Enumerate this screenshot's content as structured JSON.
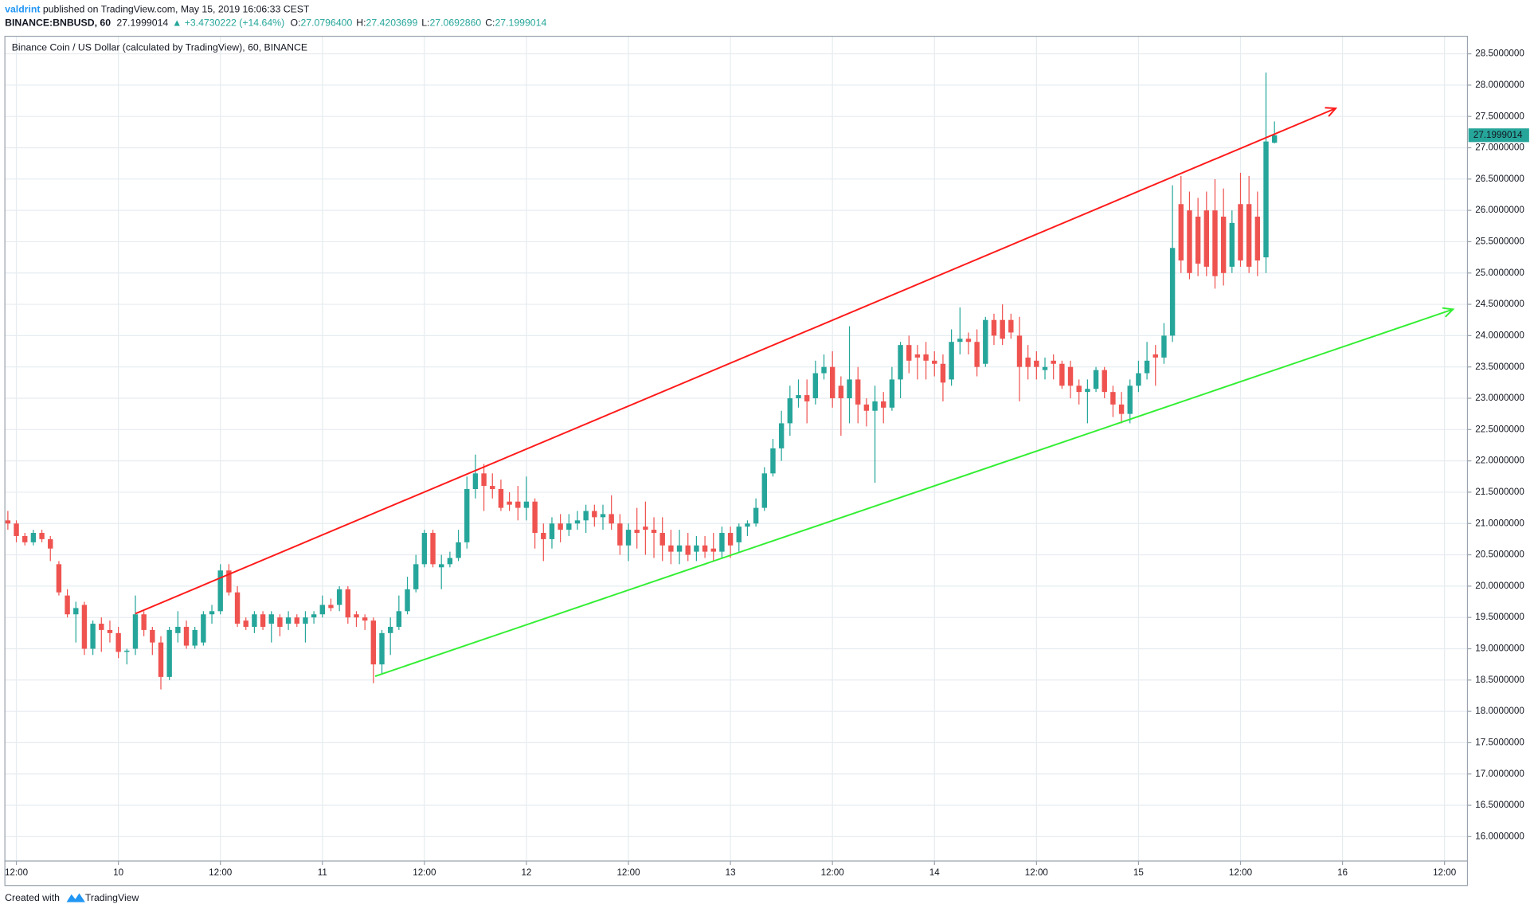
{
  "header": {
    "author": "valdrint",
    "published": " published on TradingView.com, May 15, 2019 16:06:33 CEST",
    "symbol": "BINANCE:BNBUSD, 60",
    "last": "27.1999014",
    "change": "▲ +3.4730222 (+14.64%)",
    "ohlc": [
      {
        "label": "O:",
        "value": "27.0796400"
      },
      {
        "label": "H:",
        "value": "27.4203699"
      },
      {
        "label": "L:",
        "value": "27.0692860"
      },
      {
        "label": "C:",
        "value": "27.1999014"
      }
    ]
  },
  "footer": {
    "created": "Created with",
    "brand": "TradingView"
  },
  "chart_data": {
    "type": "candlestick",
    "title": "Binance Coin / US Dollar (calculated by TradingView), 60, BINANCE",
    "up_color": "#26a69a",
    "down_color": "#ef5350",
    "grid": true,
    "xlim": [
      10.65,
      182.7
    ],
    "ylim": [
      15.61,
      28.78
    ],
    "xticks": [
      {
        "value": 12,
        "label": "12:00"
      },
      {
        "value": 24,
        "label": "10"
      },
      {
        "value": 36,
        "label": "12:00"
      },
      {
        "value": 48,
        "label": "11"
      },
      {
        "value": 60,
        "label": "12:00"
      },
      {
        "value": 72,
        "label": "12"
      },
      {
        "value": 84,
        "label": "12:00"
      },
      {
        "value": 96,
        "label": "13"
      },
      {
        "value": 108,
        "label": "12:00"
      },
      {
        "value": 120,
        "label": "14"
      },
      {
        "value": 132,
        "label": "12:00"
      },
      {
        "value": 144,
        "label": "15"
      },
      {
        "value": 156,
        "label": "12:00"
      },
      {
        "value": 168,
        "label": "16"
      },
      {
        "value": 180,
        "label": "12:00"
      }
    ],
    "yticks": [
      {
        "value": 16.0,
        "label": "16.0000000"
      },
      {
        "value": 16.5,
        "label": "16.5000000"
      },
      {
        "value": 17.0,
        "label": "17.0000000"
      },
      {
        "value": 17.5,
        "label": "17.5000000"
      },
      {
        "value": 18.0,
        "label": "18.0000000"
      },
      {
        "value": 18.5,
        "label": "18.5000000"
      },
      {
        "value": 19.0,
        "label": "19.0000000"
      },
      {
        "value": 19.5,
        "label": "19.5000000"
      },
      {
        "value": 20.0,
        "label": "20.0000000"
      },
      {
        "value": 20.5,
        "label": "20.5000000"
      },
      {
        "value": 21.0,
        "label": "21.0000000"
      },
      {
        "value": 21.5,
        "label": "21.5000000"
      },
      {
        "value": 22.0,
        "label": "22.0000000"
      },
      {
        "value": 22.5,
        "label": "22.5000000"
      },
      {
        "value": 23.0,
        "label": "23.0000000"
      },
      {
        "value": 23.5,
        "label": "23.5000000"
      },
      {
        "value": 24.0,
        "label": "24.0000000"
      },
      {
        "value": 24.5,
        "label": "24.5000000"
      },
      {
        "value": 25.0,
        "label": "25.0000000"
      },
      {
        "value": 25.5,
        "label": "25.5000000"
      },
      {
        "value": 26.0,
        "label": "26.0000000"
      },
      {
        "value": 26.5,
        "label": "26.5000000"
      },
      {
        "value": 27.0,
        "label": "27.0000000"
      },
      {
        "value": 27.5,
        "label": "27.5000000"
      },
      {
        "value": 28.0,
        "label": "28.0000000"
      },
      {
        "value": 28.5,
        "label": "28.5000000"
      }
    ],
    "price_tag": {
      "value": 27.1999014,
      "label": "27.1999014"
    },
    "lines": [
      {
        "color": "#ff1a1a",
        "x": [
          26,
          167.2
        ],
        "y": [
          19.56,
          27.63
        ]
      },
      {
        "color": "#33ee33",
        "x": [
          54.2,
          181
        ],
        "y": [
          18.56,
          24.42
        ]
      }
    ],
    "x": [
      11,
      12,
      13,
      14,
      15,
      16,
      17,
      18,
      19,
      20,
      21,
      22,
      23,
      24,
      25,
      26,
      27,
      28,
      29,
      30,
      31,
      32,
      33,
      34,
      35,
      36,
      37,
      38,
      39,
      40,
      41,
      42,
      43,
      44,
      45,
      46,
      47,
      48,
      49,
      50,
      51,
      52,
      53,
      54,
      55,
      56,
      57,
      58,
      59,
      60,
      61,
      62,
      63,
      64,
      65,
      66,
      67,
      68,
      69,
      70,
      71,
      72,
      73,
      74,
      75,
      76,
      77,
      78,
      79,
      80,
      81,
      82,
      83,
      84,
      85,
      86,
      87,
      88,
      89,
      90,
      91,
      92,
      93,
      94,
      95,
      96,
      97,
      98,
      99,
      100,
      101,
      102,
      103,
      104,
      105,
      106,
      107,
      108,
      109,
      110,
      111,
      112,
      113,
      114,
      115,
      116,
      117,
      118,
      119,
      120,
      121,
      122,
      123,
      124,
      125,
      126,
      127,
      128,
      129,
      130,
      131,
      132,
      133,
      134,
      135,
      136,
      137,
      138,
      139,
      140,
      141,
      142,
      143,
      144,
      145,
      146,
      147,
      148,
      149,
      150,
      151,
      152,
      153,
      154,
      155,
      156,
      157,
      158,
      159,
      160
    ],
    "ohlc": [
      [
        21.05,
        21.2,
        20.9,
        21.0
      ],
      [
        21.0,
        21.05,
        20.7,
        20.8
      ],
      [
        20.8,
        20.85,
        20.65,
        20.7
      ],
      [
        20.7,
        20.9,
        20.65,
        20.85
      ],
      [
        20.85,
        20.9,
        20.7,
        20.75
      ],
      [
        20.75,
        20.8,
        20.4,
        20.6
      ],
      [
        20.35,
        20.4,
        19.85,
        19.9
      ],
      [
        19.85,
        19.95,
        19.5,
        19.55
      ],
      [
        19.55,
        19.75,
        19.1,
        19.65
      ],
      [
        19.7,
        19.75,
        18.9,
        19.0
      ],
      [
        19.0,
        19.45,
        18.9,
        19.4
      ],
      [
        19.4,
        19.5,
        18.95,
        19.3
      ],
      [
        19.3,
        19.45,
        19.1,
        19.25
      ],
      [
        19.25,
        19.35,
        18.85,
        18.95
      ],
      [
        18.95,
        19.0,
        18.75,
        18.97
      ],
      [
        19.0,
        19.85,
        18.9,
        19.55
      ],
      [
        19.55,
        19.6,
        19.2,
        19.3
      ],
      [
        19.3,
        19.35,
        18.9,
        19.1
      ],
      [
        19.1,
        19.2,
        18.35,
        18.55
      ],
      [
        18.55,
        19.35,
        18.5,
        19.3
      ],
      [
        19.25,
        19.6,
        19.1,
        19.35
      ],
      [
        19.35,
        19.45,
        19.0,
        19.05
      ],
      [
        19.05,
        19.35,
        19.0,
        19.3
      ],
      [
        19.1,
        19.6,
        19.05,
        19.55
      ],
      [
        19.55,
        19.7,
        19.4,
        19.6
      ],
      [
        19.6,
        20.35,
        19.55,
        20.25
      ],
      [
        20.25,
        20.35,
        19.85,
        19.9
      ],
      [
        19.9,
        20.0,
        19.35,
        19.4
      ],
      [
        19.45,
        19.5,
        19.3,
        19.35
      ],
      [
        19.35,
        19.6,
        19.25,
        19.55
      ],
      [
        19.55,
        19.6,
        19.3,
        19.35
      ],
      [
        19.4,
        19.6,
        19.1,
        19.55
      ],
      [
        19.5,
        19.55,
        19.2,
        19.35
      ],
      [
        19.4,
        19.6,
        19.3,
        19.5
      ],
      [
        19.5,
        19.55,
        19.35,
        19.4
      ],
      [
        19.4,
        19.6,
        19.1,
        19.5
      ],
      [
        19.5,
        19.6,
        19.4,
        19.55
      ],
      [
        19.55,
        19.85,
        19.5,
        19.7
      ],
      [
        19.7,
        19.8,
        19.6,
        19.65
      ],
      [
        19.7,
        20.0,
        19.6,
        19.95
      ],
      [
        19.95,
        20.0,
        19.4,
        19.5
      ],
      [
        19.55,
        19.6,
        19.35,
        19.5
      ],
      [
        19.5,
        19.55,
        19.3,
        19.45
      ],
      [
        19.45,
        19.5,
        18.45,
        18.75
      ],
      [
        18.75,
        19.3,
        18.6,
        19.25
      ],
      [
        19.25,
        19.5,
        18.9,
        19.35
      ],
      [
        19.35,
        19.85,
        19.3,
        19.6
      ],
      [
        19.6,
        20.15,
        19.55,
        19.95
      ],
      [
        19.95,
        20.5,
        19.9,
        20.35
      ],
      [
        20.35,
        20.9,
        20.3,
        20.85
      ],
      [
        20.85,
        20.9,
        20.3,
        20.35
      ],
      [
        20.3,
        20.5,
        19.95,
        20.35
      ],
      [
        20.35,
        20.55,
        20.3,
        20.45
      ],
      [
        20.45,
        20.9,
        20.4,
        20.7
      ],
      [
        20.7,
        21.75,
        20.6,
        21.55
      ],
      [
        21.55,
        22.1,
        21.4,
        21.8
      ],
      [
        21.8,
        21.95,
        21.2,
        21.6
      ],
      [
        21.6,
        21.8,
        21.4,
        21.55
      ],
      [
        21.55,
        21.7,
        21.2,
        21.25
      ],
      [
        21.35,
        21.5,
        21.2,
        21.3
      ],
      [
        21.35,
        21.6,
        21.05,
        21.25
      ],
      [
        21.25,
        21.75,
        21.05,
        21.35
      ],
      [
        21.35,
        21.4,
        20.6,
        20.85
      ],
      [
        20.85,
        21.0,
        20.4,
        20.75
      ],
      [
        20.75,
        21.1,
        20.6,
        21.0
      ],
      [
        21.0,
        21.15,
        20.7,
        20.9
      ],
      [
        20.9,
        21.15,
        20.8,
        21.0
      ],
      [
        21.0,
        21.2,
        20.9,
        21.05
      ],
      [
        21.05,
        21.3,
        20.85,
        21.2
      ],
      [
        21.2,
        21.3,
        20.95,
        21.1
      ],
      [
        21.1,
        21.3,
        20.9,
        21.15
      ],
      [
        21.15,
        21.45,
        20.9,
        21.0
      ],
      [
        21.0,
        21.15,
        20.5,
        20.65
      ],
      [
        20.65,
        21.0,
        20.4,
        20.9
      ],
      [
        20.9,
        21.25,
        20.6,
        20.85
      ],
      [
        20.95,
        21.35,
        20.5,
        20.9
      ],
      [
        20.9,
        21.1,
        20.45,
        20.85
      ],
      [
        20.85,
        21.1,
        20.4,
        20.65
      ],
      [
        20.65,
        20.9,
        20.35,
        20.55
      ],
      [
        20.55,
        20.9,
        20.35,
        20.65
      ],
      [
        20.65,
        20.85,
        20.4,
        20.5
      ],
      [
        20.55,
        20.8,
        20.4,
        20.65
      ],
      [
        20.65,
        20.8,
        20.45,
        20.55
      ],
      [
        20.6,
        20.85,
        20.4,
        20.55
      ],
      [
        20.55,
        20.95,
        20.45,
        20.85
      ],
      [
        20.85,
        20.95,
        20.45,
        20.65
      ],
      [
        20.7,
        21.0,
        20.55,
        20.95
      ],
      [
        20.95,
        21.05,
        20.8,
        21.0
      ],
      [
        21.0,
        21.4,
        20.95,
        21.25
      ],
      [
        21.25,
        21.9,
        21.2,
        21.8
      ],
      [
        21.8,
        22.35,
        21.75,
        22.2
      ],
      [
        22.2,
        22.8,
        22.0,
        22.6
      ],
      [
        22.6,
        23.2,
        22.4,
        23.0
      ],
      [
        23.0,
        23.3,
        22.85,
        23.05
      ],
      [
        23.05,
        23.3,
        22.6,
        22.95
      ],
      [
        23.0,
        23.6,
        22.9,
        23.4
      ],
      [
        23.4,
        23.7,
        23.3,
        23.5
      ],
      [
        23.5,
        23.75,
        22.85,
        23.0
      ],
      [
        23.2,
        23.35,
        22.4,
        23.0
      ],
      [
        23.0,
        24.15,
        22.6,
        23.3
      ],
      [
        23.3,
        23.5,
        22.6,
        22.9
      ],
      [
        22.9,
        23.0,
        22.55,
        22.8
      ],
      [
        22.8,
        23.2,
        21.65,
        22.95
      ],
      [
        22.95,
        23.1,
        22.6,
        22.85
      ],
      [
        22.85,
        23.5,
        22.8,
        23.3
      ],
      [
        23.3,
        23.9,
        23.0,
        23.85
      ],
      [
        23.85,
        24.0,
        23.4,
        23.6
      ],
      [
        23.7,
        23.85,
        23.3,
        23.65
      ],
      [
        23.7,
        23.9,
        23.3,
        23.6
      ],
      [
        23.6,
        23.75,
        23.35,
        23.55
      ],
      [
        23.55,
        23.7,
        22.95,
        23.25
      ],
      [
        23.3,
        24.1,
        23.2,
        23.9
      ],
      [
        23.9,
        24.45,
        23.7,
        23.95
      ],
      [
        23.95,
        24.05,
        23.7,
        23.9
      ],
      [
        23.9,
        24.1,
        23.35,
        23.5
      ],
      [
        23.55,
        24.3,
        23.5,
        24.25
      ],
      [
        24.25,
        24.35,
        23.85,
        24.0
      ],
      [
        24.25,
        24.5,
        23.85,
        23.95
      ],
      [
        24.25,
        24.35,
        23.95,
        24.05
      ],
      [
        24.0,
        24.3,
        22.95,
        23.5
      ],
      [
        23.65,
        23.85,
        23.3,
        23.5
      ],
      [
        23.6,
        23.75,
        23.3,
        23.5
      ],
      [
        23.45,
        23.65,
        23.3,
        23.5
      ],
      [
        23.6,
        23.7,
        23.3,
        23.55
      ],
      [
        23.55,
        23.6,
        23.15,
        23.2
      ],
      [
        23.5,
        23.6,
        23.0,
        23.2
      ],
      [
        23.2,
        23.3,
        22.9,
        23.1
      ],
      [
        23.1,
        23.3,
        22.6,
        23.15
      ],
      [
        23.15,
        23.5,
        23.1,
        23.45
      ],
      [
        23.45,
        23.5,
        23.0,
        23.1
      ],
      [
        23.1,
        23.2,
        22.7,
        22.9
      ],
      [
        22.9,
        23.1,
        22.6,
        22.75
      ],
      [
        22.75,
        23.3,
        22.6,
        23.2
      ],
      [
        23.2,
        23.6,
        23.1,
        23.4
      ],
      [
        23.4,
        23.9,
        23.3,
        23.6
      ],
      [
        23.7,
        23.85,
        23.2,
        23.65
      ],
      [
        23.65,
        24.2,
        23.55,
        24.0
      ],
      [
        24.0,
        26.4,
        23.9,
        25.4
      ],
      [
        26.1,
        26.55,
        25.0,
        25.2
      ],
      [
        26.0,
        26.3,
        24.9,
        25.0
      ],
      [
        25.9,
        26.2,
        24.95,
        25.15
      ],
      [
        26.0,
        26.3,
        24.95,
        25.1
      ],
      [
        26.0,
        26.5,
        24.75,
        24.95
      ],
      [
        25.9,
        26.35,
        24.8,
        25.0
      ],
      [
        25.1,
        26.0,
        25.0,
        25.8
      ],
      [
        26.1,
        26.6,
        25.1,
        25.2
      ],
      [
        26.1,
        26.55,
        25.0,
        25.1
      ],
      [
        25.9,
        26.3,
        24.95,
        25.2
      ],
      [
        25.25,
        28.2,
        25.0,
        27.1
      ],
      [
        27.07964,
        27.4203699,
        27.069286,
        27.1999014
      ]
    ]
  }
}
